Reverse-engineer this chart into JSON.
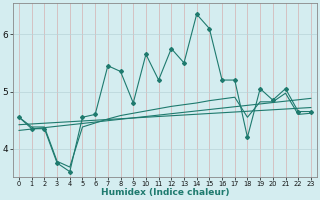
{
  "xlabel": "Humidex (Indice chaleur)",
  "ylabel": "",
  "background_color": "#d4edf0",
  "grid_color": "#b8d4d8",
  "line_color": "#1e7a6e",
  "xlim": [
    -0.5,
    23.5
  ],
  "ylim": [
    3.5,
    6.55
  ],
  "yticks": [
    4,
    5,
    6
  ],
  "xticks": [
    0,
    1,
    2,
    3,
    4,
    5,
    6,
    7,
    8,
    9,
    10,
    11,
    12,
    13,
    14,
    15,
    16,
    17,
    18,
    19,
    20,
    21,
    22,
    23
  ],
  "main_line_x": [
    0,
    1,
    2,
    3,
    4,
    5,
    6,
    7,
    8,
    9,
    10,
    11,
    12,
    13,
    14,
    15,
    16,
    17,
    18,
    19,
    20,
    21,
    22,
    23
  ],
  "main_line_y": [
    4.55,
    4.35,
    4.35,
    3.75,
    3.6,
    4.55,
    4.6,
    5.45,
    5.35,
    4.8,
    5.65,
    5.2,
    5.75,
    5.5,
    6.35,
    6.1,
    5.2,
    5.2,
    4.2,
    5.05,
    4.85,
    5.05,
    4.65,
    4.65
  ],
  "line2_x": [
    0,
    1,
    2,
    3,
    4,
    5,
    6,
    7,
    8,
    9,
    10,
    11,
    12,
    13,
    14,
    15,
    16,
    17,
    18,
    19,
    20,
    21,
    22,
    23
  ],
  "line2_y": [
    4.55,
    4.38,
    4.38,
    3.78,
    3.68,
    4.38,
    4.45,
    4.52,
    4.58,
    4.62,
    4.66,
    4.7,
    4.74,
    4.77,
    4.8,
    4.84,
    4.87,
    4.9,
    4.55,
    4.82,
    4.82,
    4.97,
    4.6,
    4.62
  ],
  "line3_x": [
    0,
    23
  ],
  "line3_y": [
    4.42,
    4.72
  ],
  "line4_x": [
    0,
    23
  ],
  "line4_y": [
    4.32,
    4.88
  ]
}
